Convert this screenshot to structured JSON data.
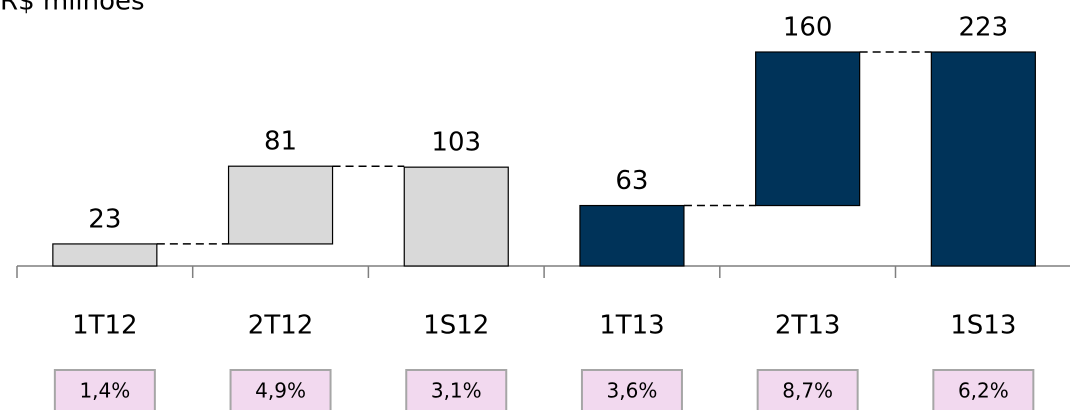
{
  "chart_data": {
    "type": "waterfall",
    "title": "R$ milhões",
    "categories": [
      "1T12",
      "2T12",
      "1S12",
      "1T13",
      "2T13",
      "1S13"
    ],
    "values": [
      23,
      81,
      103,
      63,
      160,
      223
    ],
    "measure": [
      "absolute",
      "relative",
      "total",
      "absolute",
      "relative",
      "total"
    ],
    "colors": [
      "#d9d9d9",
      "#d9d9d9",
      "#d9d9d9",
      "#003359",
      "#003359",
      "#003359"
    ],
    "margin_labels": [
      "1,4%",
      "4,9%",
      "3,1%",
      "3,6%",
      "8,7%",
      "6,2%"
    ]
  }
}
